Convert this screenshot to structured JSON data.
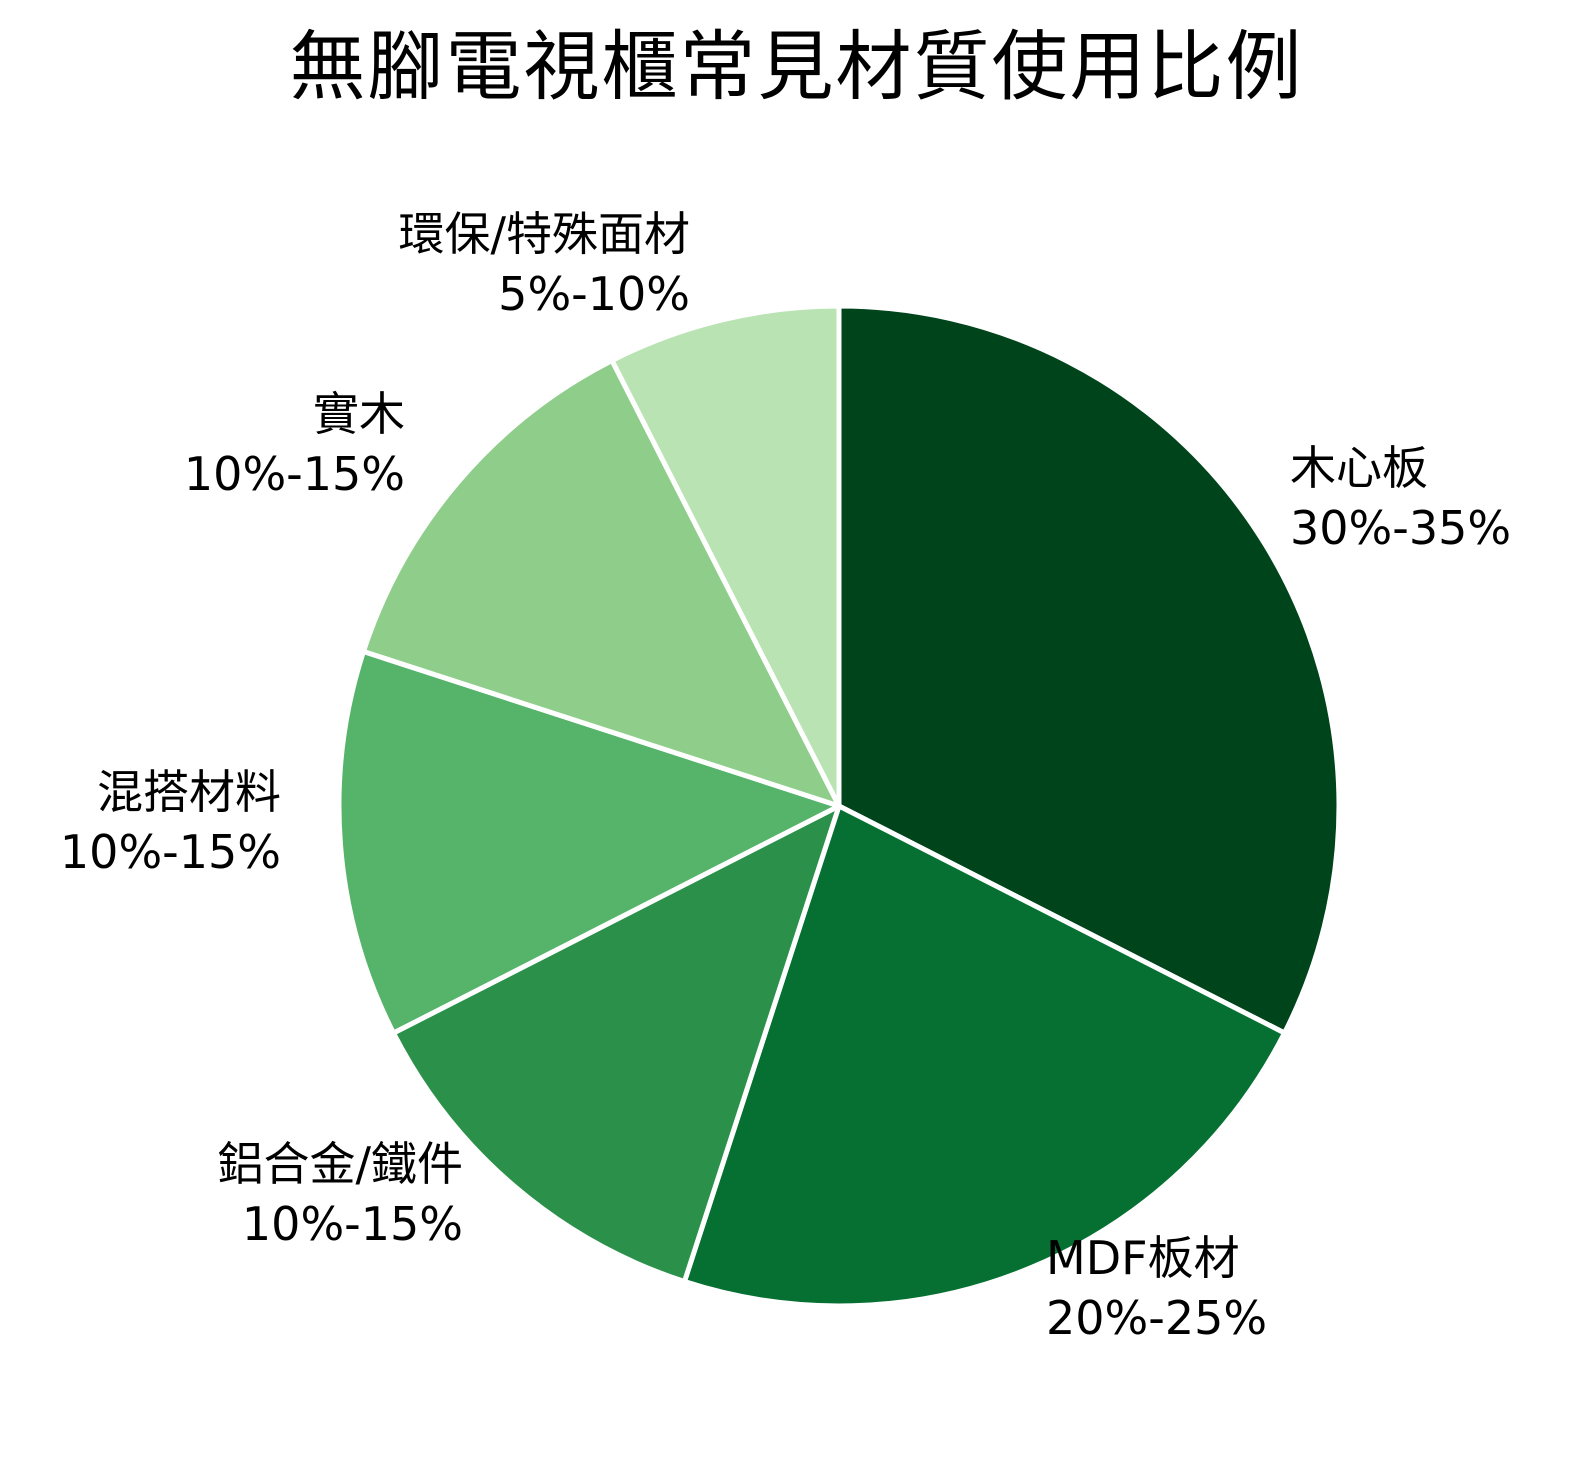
{
  "title": "無腳電視櫃常見材質使用比例",
  "chart_data": {
    "type": "pie",
    "title": "無腳電視櫃常見材質使用比例",
    "start_angle": "90 (top), clockwise",
    "categories": [
      "木心板",
      "MDF板材",
      "鋁合金/鐵件",
      "混搭材料",
      "實木",
      "環保/特殊面材"
    ],
    "range_labels": [
      "30%-35%",
      "20%-25%",
      "10%-15%",
      "10%-15%",
      "10%-15%",
      "5%-10%"
    ],
    "values": [
      32.5,
      22.5,
      12.5,
      12.5,
      12.5,
      7.5
    ],
    "colors": [
      "#00441b",
      "#067032",
      "#2b914a",
      "#55b36a",
      "#8fce8a",
      "#b9e3b3"
    ],
    "legend": "none (labels outside slices)"
  },
  "slices": [
    {
      "name": "木心板",
      "range": "30%-35%",
      "value": 32.5,
      "color": "#00441b"
    },
    {
      "name": "MDF板材",
      "range": "20%-25%",
      "value": 22.5,
      "color": "#067032"
    },
    {
      "name": "鋁合金/鐵件",
      "range": "10%-15%",
      "value": 12.5,
      "color": "#2b914a"
    },
    {
      "name": "混搭材料",
      "range": "10%-15%",
      "value": 12.5,
      "color": "#55b36a"
    },
    {
      "name": "實木",
      "range": "10%-15%",
      "value": 12.5,
      "color": "#8fce8a"
    },
    {
      "name": "環保/特殊面材",
      "range": "5%-10%",
      "value": 7.5,
      "color": "#b9e3b3"
    }
  ]
}
